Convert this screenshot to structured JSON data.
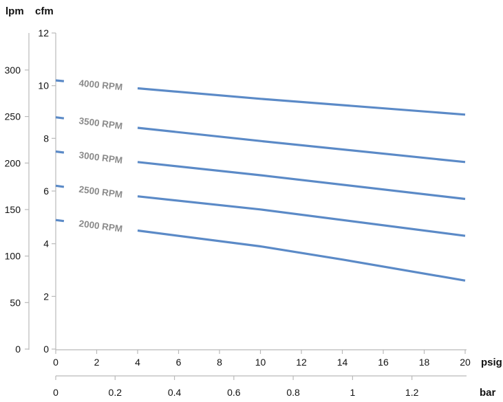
{
  "chart_data": {
    "type": "line",
    "units": {
      "lpm": "lpm",
      "cfm": "cfm",
      "psig": "psig",
      "bar": "bar"
    },
    "x_psig": {
      "range": [
        0,
        20
      ],
      "ticks": [
        "0",
        "2",
        "4",
        "6",
        "8",
        "10",
        "12",
        "14",
        "16",
        "18",
        "20"
      ]
    },
    "x_bar": {
      "range": [
        0,
        1.3793
      ],
      "ticks": [
        {
          "value": 0,
          "label": "0"
        },
        {
          "value": 0.2,
          "label": "0.2"
        },
        {
          "value": 0.4,
          "label": "0.4"
        },
        {
          "value": 0.6,
          "label": "0.6"
        },
        {
          "value": 0.8,
          "label": "0.8"
        },
        {
          "value": 1.0,
          "label": "1"
        },
        {
          "value": 1.2,
          "label": "1.2"
        }
      ]
    },
    "y_cfm": {
      "range": [
        0,
        12
      ],
      "ticks": [
        "0",
        "2",
        "4",
        "6",
        "8",
        "10",
        "12"
      ]
    },
    "y_lpm": {
      "range": [
        0,
        339.8
      ],
      "ticks": [
        "0",
        "50",
        "100",
        "150",
        "200",
        "250",
        "300"
      ]
    },
    "grid": false,
    "series": [
      {
        "name": "4000 RPM",
        "x": [
          0,
          4,
          10,
          20
        ],
        "y": [
          10.2,
          9.9,
          9.5,
          8.9
        ]
      },
      {
        "name": "3500 RPM",
        "x": [
          0,
          4,
          10,
          20
        ],
        "y": [
          8.8,
          8.4,
          7.9,
          7.1
        ]
      },
      {
        "name": "3000 RPM",
        "x": [
          0,
          4,
          10,
          20
        ],
        "y": [
          7.5,
          7.1,
          6.6,
          5.7
        ]
      },
      {
        "name": "2500 RPM",
        "x": [
          0,
          4,
          10,
          20
        ],
        "y": [
          6.2,
          5.8,
          5.3,
          4.3
        ]
      },
      {
        "name": "2000 RPM",
        "x": [
          0,
          4,
          10,
          14,
          20
        ],
        "y": [
          4.9,
          4.5,
          3.9,
          3.4,
          2.6
        ]
      }
    ]
  }
}
